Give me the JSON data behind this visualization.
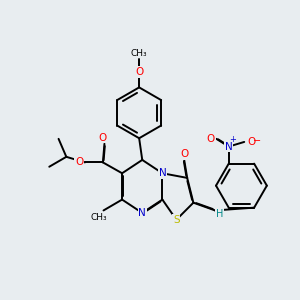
{
  "background_color": "#e8edf0",
  "bond_color": "#000000",
  "atom_colors": {
    "O": "#ff0000",
    "N": "#0000cc",
    "S": "#bbbb00",
    "H": "#008888",
    "C": "#000000"
  },
  "figsize": [
    3.0,
    3.0
  ],
  "dpi": 100,
  "lw": 1.4
}
